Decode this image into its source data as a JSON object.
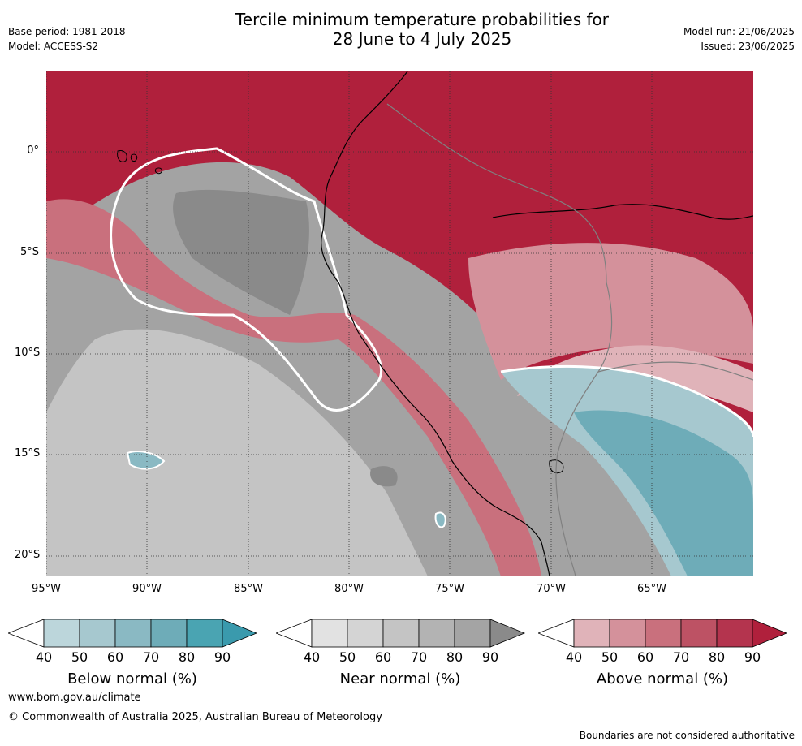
{
  "header": {
    "base_period": "Base period: 1981-2018",
    "model": "Model: ACCESS-S2",
    "title_line1": "Tercile minimum temperature probabilities for",
    "title_line2": "28 June to 4 July 2025",
    "model_run": "Model run: 21/06/2025",
    "issued": "Issued: 23/06/2025"
  },
  "map": {
    "lat_labels": [
      "0°",
      "5°S",
      "10°S",
      "15°S",
      "20°S"
    ],
    "lon_labels": [
      "95°W",
      "90°W",
      "85°W",
      "80°W",
      "75°W",
      "70°W",
      "65°W"
    ],
    "colors": {
      "above": [
        "#ffffff",
        "#e0b3b9",
        "#d4919b",
        "#c9707d",
        "#bd5264",
        "#b4344e",
        "#b0203c"
      ],
      "near": [
        "#ffffff",
        "#e2e2e2",
        "#d4d4d4",
        "#c4c4c4",
        "#b3b3b3",
        "#a4a4a4",
        "#8a8a8a"
      ],
      "below": [
        "#ffffff",
        "#bcd6db",
        "#a6c8cf",
        "#8ab9c3",
        "#6eacb8",
        "#4aa4b2",
        "#3a9aad"
      ],
      "ocean_base": "#a3a3a3",
      "coast": "#000000",
      "boundary": "#808080"
    }
  },
  "colorbars": [
    {
      "label": "Below normal (%)",
      "ticks": [
        "40",
        "50",
        "60",
        "70",
        "80",
        "90"
      ],
      "colors": [
        "#ffffff",
        "#bcd6db",
        "#a6c8cf",
        "#8ab9c3",
        "#6eacb8",
        "#4aa4b2",
        "#3a9aad"
      ]
    },
    {
      "label": "Near normal (%)",
      "ticks": [
        "40",
        "50",
        "60",
        "70",
        "80",
        "90"
      ],
      "colors": [
        "#ffffff",
        "#e2e2e2",
        "#d4d4d4",
        "#c4c4c4",
        "#b3b3b3",
        "#a4a4a4",
        "#8a8a8a"
      ]
    },
    {
      "label": "Above normal (%)",
      "ticks": [
        "40",
        "50",
        "60",
        "70",
        "80",
        "90"
      ],
      "colors": [
        "#ffffff",
        "#e0b3b9",
        "#d4919b",
        "#c9707d",
        "#bd5264",
        "#b4344e",
        "#b0203c"
      ]
    }
  ],
  "footer": {
    "url": "www.bom.gov.au/climate",
    "copyright": "© Commonwealth of Australia 2025, Australian Bureau of Meteorology",
    "disclaimer": "Boundaries are not considered authoritative"
  }
}
